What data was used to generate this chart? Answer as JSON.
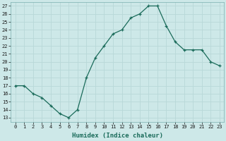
{
  "x": [
    0,
    1,
    2,
    3,
    4,
    5,
    6,
    7,
    8,
    9,
    10,
    11,
    12,
    13,
    14,
    15,
    16,
    17,
    18,
    19,
    20,
    21,
    22,
    23
  ],
  "y": [
    17,
    17,
    16,
    15.5,
    14.5,
    13.5,
    13,
    14,
    18,
    20.5,
    22,
    23.5,
    24,
    25.5,
    26,
    27,
    27,
    24.5,
    22.5,
    21.5,
    21.5,
    21.5,
    20,
    19.5
  ],
  "xlim": [
    -0.5,
    23.5
  ],
  "ylim": [
    12.5,
    27.5
  ],
  "xlabel": "Humidex (Indice chaleur)",
  "xticks": [
    0,
    1,
    2,
    3,
    4,
    5,
    6,
    7,
    8,
    9,
    10,
    11,
    12,
    13,
    14,
    15,
    16,
    17,
    18,
    19,
    20,
    21,
    22,
    23
  ],
  "yticks": [
    13,
    14,
    15,
    16,
    17,
    18,
    19,
    20,
    21,
    22,
    23,
    24,
    25,
    26,
    27
  ],
  "line_color": "#1a6b5a",
  "marker_color": "#1a6b5a",
  "bg_color": "#cde8e8",
  "grid_color": "#b8d8d8",
  "font_color": "#1a1a1a",
  "xlabel_color": "#1a6b5a",
  "tick_font_size": 5.0,
  "xlabel_font_size": 6.5
}
